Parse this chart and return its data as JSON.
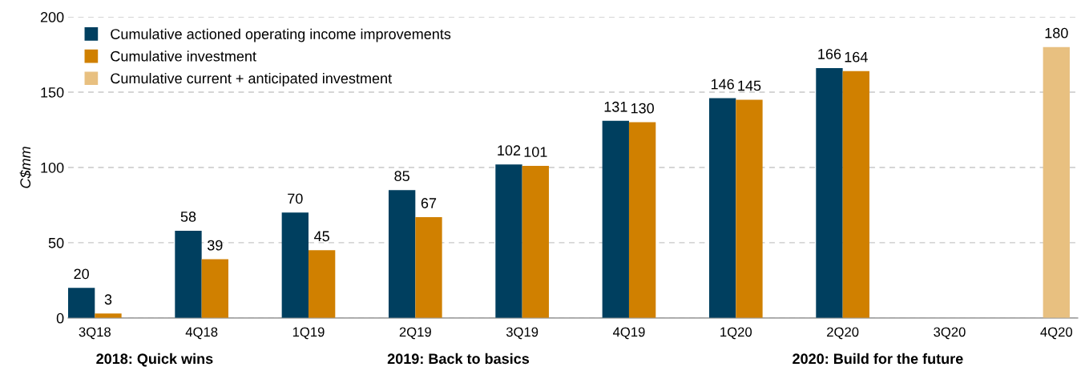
{
  "chart_data": {
    "type": "bar",
    "ylabel": "C$mm",
    "categories": [
      "3Q18",
      "4Q18",
      "1Q19",
      "2Q19",
      "3Q19",
      "4Q19",
      "1Q20",
      "2Q20",
      "3Q20",
      "4Q20"
    ],
    "series": [
      {
        "name": "Cumulative actioned operating income improvements",
        "color": "#003f5f",
        "values": [
          20,
          58,
          70,
          85,
          102,
          131,
          146,
          166,
          null,
          null
        ]
      },
      {
        "name": "Cumulative investment",
        "color": "#d08000",
        "values": [
          3,
          39,
          45,
          67,
          101,
          130,
          145,
          164,
          null,
          null
        ]
      },
      {
        "name": "Cumulative current + anticipated investment",
        "color": "#e8c080",
        "values": [
          null,
          null,
          null,
          null,
          null,
          null,
          null,
          null,
          null,
          180
        ]
      }
    ],
    "ylim": [
      0,
      200
    ],
    "yticks": [
      0,
      50,
      100,
      150,
      200
    ],
    "grid": "y",
    "legend": "top left",
    "data_labels": true,
    "annotations": [
      "2018: Quick wins",
      "2019: Back to basics",
      "2020: Build for the future"
    ]
  }
}
